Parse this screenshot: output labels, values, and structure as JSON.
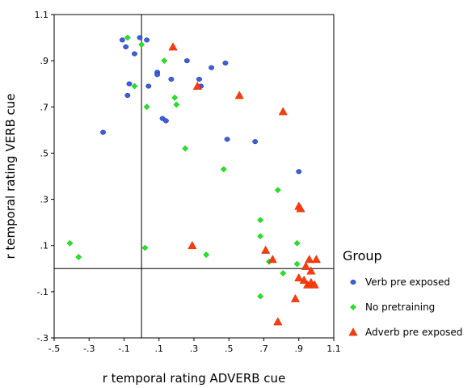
{
  "colors": {
    "verb_pre_exposed": "#3a5fe0",
    "no_pretraining": "#1ee81e",
    "adverb_pre_exposed": "#ff3b0a"
  },
  "chart_data": {
    "type": "scatter",
    "xlabel": "r temporal rating ADVERB cue",
    "ylabel": "r temporal rating VERB cue",
    "xlim": [
      -0.5,
      1.1
    ],
    "ylim": [
      -0.3,
      1.1
    ],
    "x_ticks": [
      -0.5,
      -0.3,
      -0.1,
      0.1,
      0.3,
      0.5,
      0.7,
      0.9,
      1.1
    ],
    "x_tick_labels": [
      "-.5",
      "-.3",
      "-.1",
      ".1",
      ".3",
      ".5",
      ".7",
      ".9",
      "1.1"
    ],
    "y_ticks": [
      1.1,
      0.9,
      0.7,
      0.5,
      0.3,
      0.1,
      -0.1,
      -0.3
    ],
    "y_tick_labels": [
      "1.1",
      ".9",
      ".7",
      ".5",
      ".3",
      ".1",
      "-.1",
      "-.3"
    ],
    "reference_lines": {
      "x": 0.0,
      "y": 0.0
    },
    "legend": {
      "title": "Group",
      "placement": "right"
    },
    "series": [
      {
        "name": "Verb pre exposed",
        "marker": "circle",
        "color": "#3a5fe0",
        "points": [
          [
            -0.11,
            0.99
          ],
          [
            -0.09,
            0.96
          ],
          [
            -0.04,
            0.93
          ],
          [
            -0.01,
            1.0
          ],
          [
            0.03,
            0.99
          ],
          [
            -0.07,
            0.8
          ],
          [
            -0.08,
            0.75
          ],
          [
            0.04,
            0.79
          ],
          [
            0.09,
            0.85
          ],
          [
            0.09,
            0.84
          ],
          [
            0.12,
            0.65
          ],
          [
            0.14,
            0.64
          ],
          [
            0.17,
            0.82
          ],
          [
            0.26,
            0.9
          ],
          [
            0.33,
            0.82
          ],
          [
            0.34,
            0.79
          ],
          [
            0.4,
            0.87
          ],
          [
            0.48,
            0.89
          ],
          [
            0.49,
            0.56
          ],
          [
            0.65,
            0.55
          ],
          [
            0.9,
            0.42
          ],
          [
            -0.22,
            0.59
          ]
        ]
      },
      {
        "name": "No pretraining",
        "marker": "diamond",
        "color": "#1ee81e",
        "points": [
          [
            -0.08,
            1.0
          ],
          [
            0.0,
            0.97
          ],
          [
            -0.04,
            0.79
          ],
          [
            0.03,
            0.7
          ],
          [
            0.13,
            0.9
          ],
          [
            0.19,
            0.74
          ],
          [
            0.2,
            0.71
          ],
          [
            0.25,
            0.52
          ],
          [
            0.47,
            0.43
          ],
          [
            0.78,
            0.34
          ],
          [
            0.68,
            0.21
          ],
          [
            0.68,
            0.14
          ],
          [
            0.89,
            0.11
          ],
          [
            0.37,
            0.06
          ],
          [
            0.02,
            0.09
          ],
          [
            -0.41,
            0.11
          ],
          [
            -0.36,
            0.05
          ],
          [
            0.73,
            0.03
          ],
          [
            0.89,
            0.02
          ],
          [
            0.81,
            -0.02
          ],
          [
            0.68,
            -0.12
          ]
        ]
      },
      {
        "name": "Adverb pre exposed",
        "marker": "triangle",
        "color": "#ff3b0a",
        "points": [
          [
            0.18,
            0.96
          ],
          [
            0.32,
            0.79
          ],
          [
            0.56,
            0.75
          ],
          [
            0.81,
            0.68
          ],
          [
            0.9,
            0.27
          ],
          [
            0.91,
            0.26
          ],
          [
            0.29,
            0.1
          ],
          [
            0.71,
            0.08
          ],
          [
            0.75,
            0.04
          ],
          [
            0.94,
            0.01
          ],
          [
            0.96,
            0.04
          ],
          [
            1.0,
            0.04
          ],
          [
            0.9,
            -0.04
          ],
          [
            0.93,
            -0.05
          ],
          [
            0.95,
            -0.07
          ],
          [
            0.97,
            -0.06
          ],
          [
            0.99,
            -0.07
          ],
          [
            0.97,
            -0.01
          ],
          [
            0.88,
            -0.13
          ],
          [
            0.78,
            -0.23
          ]
        ]
      }
    ]
  }
}
